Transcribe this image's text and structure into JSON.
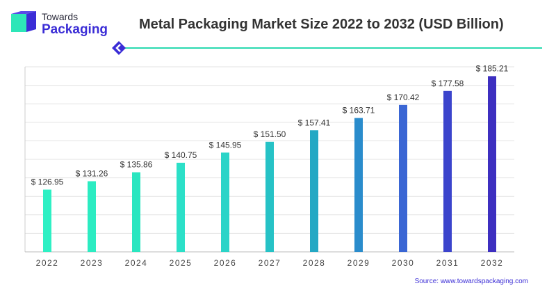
{
  "brand": {
    "top": "Towards",
    "bottom": "Packaging"
  },
  "chart_data": {
    "type": "bar",
    "title": "Metal Packaging Market Size 2022 to 2032 (USD Billion)",
    "categories": [
      "2022",
      "2023",
      "2024",
      "2025",
      "2026",
      "2027",
      "2028",
      "2029",
      "2030",
      "2031",
      "2032"
    ],
    "values": [
      126.95,
      131.26,
      135.86,
      140.75,
      145.95,
      151.5,
      157.41,
      163.71,
      170.42,
      177.58,
      185.21
    ],
    "value_labels": [
      "$ 126.95",
      "$ 131.26",
      "$ 135.86",
      "$ 140.75",
      "$ 145.95",
      "$ 151.50",
      "$ 157.41",
      "$ 163.71",
      "$ 170.42",
      "$ 177.58",
      "$ 185.21"
    ],
    "bar_colors": [
      "#2ef0c4",
      "#2cecc2",
      "#2ae6c0",
      "#2ce0c8",
      "#2bd4c8",
      "#26c2c6",
      "#24a8c4",
      "#2a8ccc",
      "#3a66d4",
      "#3b44cc",
      "#3d2fc0"
    ],
    "ylim": [
      95,
      190
    ],
    "grid": true,
    "xlabel": "",
    "ylabel": ""
  },
  "source": "Source: www.towardspackaging.com"
}
